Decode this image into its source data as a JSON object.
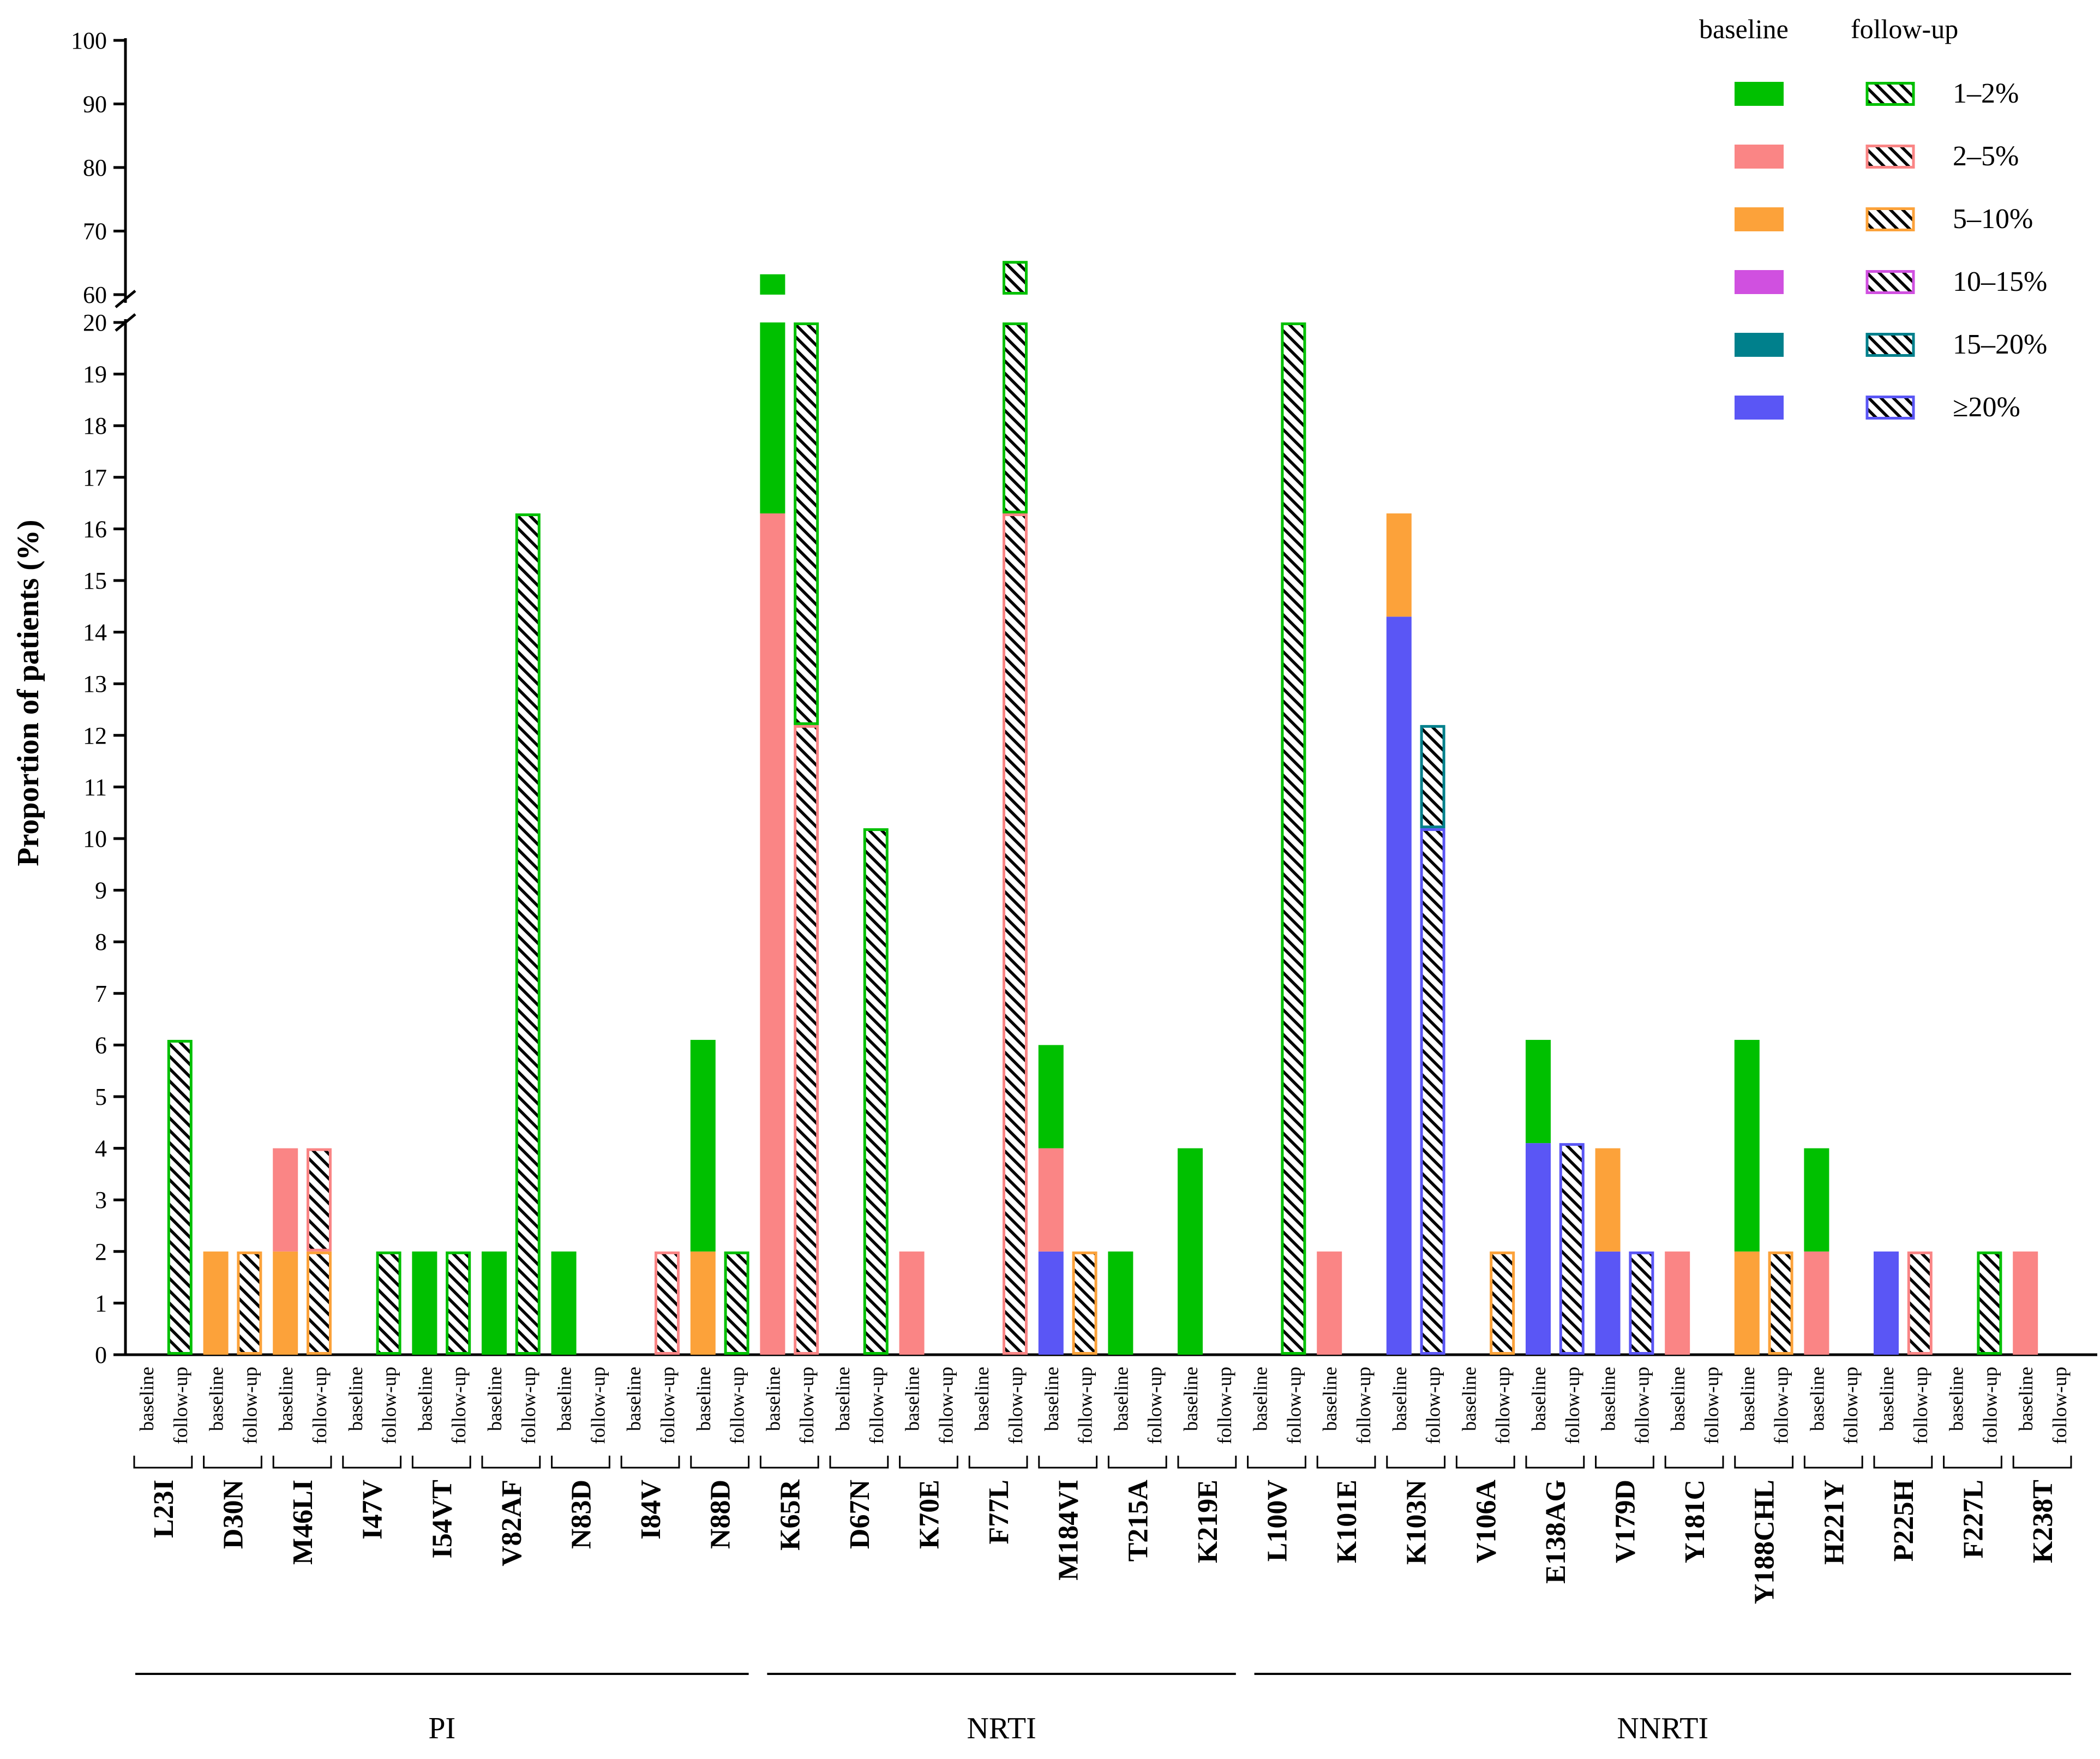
{
  "chart_data": {
    "type": "bar",
    "stacked": true,
    "ylabel": "Proportion of patients (%)",
    "y_axis_lower": {
      "range": [
        0,
        20
      ],
      "ticks": [
        "0",
        "1",
        "2",
        "3",
        "4",
        "5",
        "6",
        "7",
        "8",
        "9",
        "10",
        "11",
        "12",
        "13",
        "14",
        "15",
        "16",
        "17",
        "18",
        "19",
        "20"
      ]
    },
    "y_axis_upper": {
      "range": [
        60,
        100
      ],
      "ticks": [
        "60",
        "70",
        "80",
        "90",
        "100"
      ]
    },
    "axis_break": "20–60",
    "colors": {
      "1–2%": "#00c000",
      "2–5%": "#fa8585",
      "5–10%": "#fca23a",
      "10–15%": "#d050e0",
      "15–20%": "#00808c",
      "≥20%": "#5a56f5"
    },
    "legend": {
      "position": "top-right",
      "header_baseline": "baseline",
      "header_followup": "follow-up",
      "entries": [
        "1–2%",
        "2–5%",
        "5–10%",
        "10–15%",
        "15–20%",
        "≥20%"
      ]
    },
    "timepoints": {
      "baseline": "baseline",
      "followup": "follow-up"
    },
    "groups": [
      {
        "name": "PI",
        "mutations": [
          {
            "name": "L23I",
            "baseline": [],
            "followup": [
              [
                "1–2%",
                6.1
              ]
            ]
          },
          {
            "name": "D30N",
            "baseline": [
              [
                "5–10%",
                2.0
              ]
            ],
            "followup": [
              [
                "5–10%",
                2.0
              ]
            ]
          },
          {
            "name": "M46LI",
            "baseline": [
              [
                "5–10%",
                2.0
              ],
              [
                "2–5%",
                2.0
              ]
            ],
            "followup": [
              [
                "5–10%",
                2.0
              ],
              [
                "2–5%",
                2.0
              ]
            ]
          },
          {
            "name": "I47V",
            "baseline": [],
            "followup": [
              [
                "1–2%",
                2.0
              ]
            ]
          },
          {
            "name": "I54VT",
            "baseline": [
              [
                "1–2%",
                2.0
              ]
            ],
            "followup": [
              [
                "1–2%",
                2.0
              ]
            ]
          },
          {
            "name": "V82AF",
            "baseline": [
              [
                "1–2%",
                2.0
              ]
            ],
            "followup": [
              [
                "1–2%",
                16.3
              ]
            ]
          },
          {
            "name": "N83D",
            "baseline": [
              [
                "1–2%",
                2.0
              ]
            ],
            "followup": []
          },
          {
            "name": "I84V",
            "baseline": [],
            "followup": [
              [
                "2–5%",
                2.0
              ]
            ]
          },
          {
            "name": "N88D",
            "baseline": [
              [
                "5–10%",
                2.0
              ],
              [
                "1–2%",
                4.1
              ]
            ],
            "followup": [
              [
                "1–2%",
                2.0
              ]
            ]
          }
        ]
      },
      {
        "name": "NRTI",
        "mutations": [
          {
            "name": "K65R",
            "baseline": [
              [
                "2–5%",
                16.3
              ],
              [
                "1–2%",
                46.9
              ]
            ],
            "followup": [
              [
                "2–5%",
                12.2
              ],
              [
                "1–2%",
                7.8
              ]
            ]
          },
          {
            "name": "D67N",
            "baseline": [],
            "followup": [
              [
                "1–2%",
                10.2
              ]
            ]
          },
          {
            "name": "K70E",
            "baseline": [
              [
                "2–5%",
                2.0
              ]
            ],
            "followup": []
          },
          {
            "name": "F77L",
            "baseline": [],
            "followup": [
              [
                "2–5%",
                16.3
              ],
              [
                "1–2%",
                49.0
              ]
            ]
          },
          {
            "name": "M184VI",
            "baseline": [
              [
                "≥20%",
                2.0
              ],
              [
                "2–5%",
                2.0
              ],
              [
                "1–2%",
                2.0
              ]
            ],
            "followup": [
              [
                "5–10%",
                2.0
              ]
            ]
          },
          {
            "name": "T215A",
            "baseline": [
              [
                "1–2%",
                2.0
              ]
            ],
            "followup": []
          },
          {
            "name": "K219E",
            "baseline": [
              [
                "1–2%",
                4.0
              ]
            ],
            "followup": []
          }
        ]
      },
      {
        "name": "NNRTI",
        "mutations": [
          {
            "name": "L100V",
            "baseline": [],
            "followup": [
              [
                "1–2%",
                20.0
              ]
            ]
          },
          {
            "name": "K101E",
            "baseline": [
              [
                "2–5%",
                2.0
              ]
            ],
            "followup": []
          },
          {
            "name": "K103N",
            "baseline": [
              [
                "≥20%",
                14.3
              ],
              [
                "5–10%",
                2.0
              ]
            ],
            "followup": [
              [
                "≥20%",
                10.2
              ],
              [
                "15–20%",
                2.0
              ]
            ]
          },
          {
            "name": "V106A",
            "baseline": [],
            "followup": [
              [
                "5–10%",
                2.0
              ]
            ]
          },
          {
            "name": "E138AG",
            "baseline": [
              [
                "≥20%",
                4.1
              ],
              [
                "1–2%",
                2.0
              ]
            ],
            "followup": [
              [
                "≥20%",
                4.1
              ]
            ]
          },
          {
            "name": "V179D",
            "baseline": [
              [
                "≥20%",
                2.0
              ],
              [
                "5–10%",
                2.0
              ]
            ],
            "followup": [
              [
                "≥20%",
                2.0
              ]
            ]
          },
          {
            "name": "Y181C",
            "baseline": [
              [
                "2–5%",
                2.0
              ]
            ],
            "followup": []
          },
          {
            "name": "Y188CHL",
            "baseline": [
              [
                "5–10%",
                2.0
              ],
              [
                "1–2%",
                4.1
              ]
            ],
            "followup": [
              [
                "5–10%",
                2.0
              ]
            ]
          },
          {
            "name": "H221Y",
            "baseline": [
              [
                "2–5%",
                2.0
              ],
              [
                "1–2%",
                2.0
              ]
            ],
            "followup": []
          },
          {
            "name": "P225H",
            "baseline": [
              [
                "≥20%",
                2.0
              ]
            ],
            "followup": [
              [
                "2–5%",
                2.0
              ]
            ]
          },
          {
            "name": "F227L",
            "baseline": [],
            "followup": [
              [
                "1–2%",
                2.0
              ]
            ]
          },
          {
            "name": "K238T",
            "baseline": [
              [
                "2–5%",
                2.0
              ]
            ],
            "followup": []
          }
        ]
      }
    ]
  }
}
